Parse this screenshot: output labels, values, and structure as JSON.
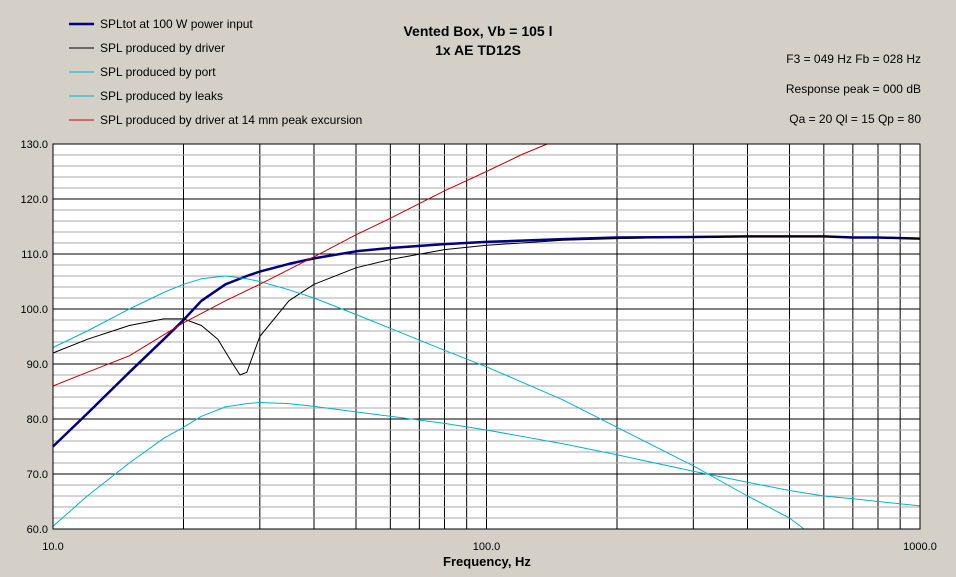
{
  "chart_data": {
    "type": "line",
    "title": "Vented Box, Vb = 105 l",
    "subtitle": "1x AE TD12S",
    "xlabel": "Frequency, Hz",
    "ylabel": "",
    "x_scale": "log",
    "xlim": [
      10,
      1000
    ],
    "ylim": [
      60,
      130
    ],
    "x_tick_labels": [
      "10.0",
      "100.0",
      "1000.0"
    ],
    "y_tick_labels": [
      "60.0",
      "70.0",
      "80.0",
      "90.0",
      "100.0",
      "110.0",
      "120.0",
      "130.0"
    ],
    "grid": true,
    "legend_position": "top-left",
    "info_lines": [
      "F3 = 049 Hz  Fb = 028 Hz",
      "Response peak = 000 dB",
      "Qa = 20  Ql = 15  Qp = 80"
    ],
    "series": [
      {
        "name": "SPLtot at 100 W power input",
        "color": "#000080",
        "width": 2.5,
        "x": [
          10,
          12,
          15,
          18,
          20,
          22,
          25,
          28,
          30,
          35,
          40,
          50,
          60,
          80,
          100,
          150,
          200,
          300,
          400,
          500,
          600,
          700,
          800,
          1000
        ],
        "y": [
          75,
          81,
          88.5,
          94.5,
          98,
          101.5,
          104.5,
          106,
          106.8,
          108.2,
          109.2,
          110.5,
          111.1,
          111.8,
          112.2,
          112.7,
          113,
          113.1,
          113.2,
          113.2,
          113.2,
          113.0,
          113.0,
          112.8
        ]
      },
      {
        "name": "SPL produced by driver",
        "color": "#000000",
        "width": 1,
        "x": [
          10,
          12,
          15,
          18,
          20,
          22,
          24,
          26,
          27,
          28,
          30,
          35,
          40,
          50,
          60,
          80,
          100,
          150,
          200,
          300,
          400,
          500,
          600,
          700,
          800,
          1000
        ],
        "y": [
          92,
          94.5,
          97,
          98.2,
          98.2,
          97,
          94.5,
          90,
          88,
          88.5,
          95,
          101.5,
          104.5,
          107.5,
          109,
          110.8,
          111.6,
          112.5,
          112.8,
          113.1,
          113.2,
          113.2,
          113.2,
          113.0,
          113.0,
          112.8
        ]
      },
      {
        "name": "SPL produced by port",
        "color": "#00b4d0",
        "width": 1,
        "x": [
          10,
          12,
          15,
          18,
          20,
          22,
          25,
          28,
          30,
          35,
          40,
          50,
          60,
          80,
          100,
          150,
          200,
          300,
          400,
          500,
          540
        ],
        "y": [
          93,
          96,
          100,
          103,
          104.5,
          105.5,
          106,
          105.5,
          105,
          103.5,
          102,
          99,
          96.5,
          92.5,
          89.5,
          83.5,
          78.5,
          71.5,
          66,
          62,
          60
        ]
      },
      {
        "name": "SPL produced by leaks",
        "color": "#00b4d0",
        "width": 1,
        "x": [
          10,
          12,
          15,
          18,
          20,
          22,
          25,
          28,
          30,
          35,
          40,
          50,
          60,
          80,
          100,
          150,
          200,
          300,
          400,
          500,
          600,
          700,
          800,
          1000
        ],
        "y": [
          60.5,
          66,
          72,
          76.5,
          78.5,
          80.5,
          82.2,
          82.8,
          83,
          82.8,
          82.3,
          81.3,
          80.5,
          79.2,
          78,
          75.5,
          73.5,
          70.5,
          68.5,
          67,
          66,
          65.5,
          65,
          64.2
        ]
      },
      {
        "name": "SPL produced by driver at 14 mm peak excursion",
        "color": "#cc0000",
        "width": 1,
        "x": [
          10,
          12,
          15,
          20,
          25,
          30,
          40,
          50,
          60,
          80,
          100,
          120,
          138
        ],
        "y": [
          86,
          88.5,
          91.5,
          97.5,
          101.5,
          104.5,
          109.5,
          113.5,
          116.5,
          121.5,
          125,
          128,
          130
        ]
      }
    ]
  }
}
